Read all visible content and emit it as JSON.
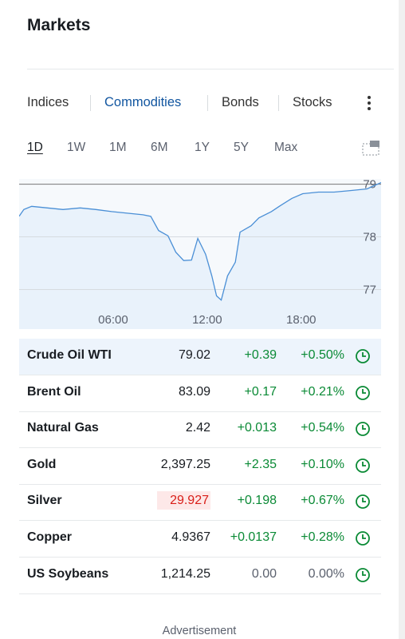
{
  "header": {
    "title": "Markets"
  },
  "tabs": {
    "items": [
      "Indices",
      "Commodities",
      "Bonds",
      "Stocks"
    ],
    "active": 1
  },
  "ranges": {
    "items": [
      "1D",
      "1W",
      "1M",
      "6M",
      "1Y",
      "5Y",
      "Max"
    ],
    "active": 0
  },
  "chart": {
    "type": "line",
    "color": "#4a8fd6",
    "fill": "#e9f2fb",
    "xlim": [
      0,
      23.1
    ],
    "ylim": [
      76.25,
      79.1
    ],
    "yticks": [
      77,
      78,
      79
    ],
    "xticks": [
      {
        "value": 6,
        "label": "06:00"
      },
      {
        "value": 12,
        "label": "12:00"
      },
      {
        "value": 18,
        "label": "18:00"
      }
    ],
    "x": [
      0,
      0.3,
      0.8,
      1.8,
      2.8,
      3.9,
      4.9,
      5.9,
      6.9,
      7.9,
      8.4,
      8.9,
      9.5,
      10.0,
      10.5,
      11.0,
      11.4,
      11.9,
      12.3,
      12.6,
      12.9,
      13.3,
      13.8,
      14.1,
      14.8,
      15.3,
      16.1,
      16.6,
      17.4,
      18.1,
      19.1,
      20.1,
      21.2,
      22.2,
      23.1
    ],
    "values": [
      78.39,
      78.52,
      78.58,
      78.55,
      78.52,
      78.55,
      78.52,
      78.48,
      78.45,
      78.42,
      78.39,
      78.12,
      78.02,
      77.71,
      77.55,
      77.56,
      77.97,
      77.67,
      77.26,
      76.88,
      76.8,
      77.26,
      77.52,
      78.09,
      78.21,
      78.36,
      78.48,
      78.58,
      78.73,
      78.82,
      78.85,
      78.85,
      78.88,
      78.91,
      79.03
    ]
  },
  "table": {
    "rows": [
      [
        "Crude Oil WTI",
        "79.02",
        "+0.39",
        "+0.50%"
      ],
      [
        "Brent Oil",
        "83.09",
        "+0.17",
        "+0.21%"
      ],
      [
        "Natural Gas",
        "2.42",
        "+0.013",
        "+0.54%"
      ],
      [
        "Gold",
        "2,397.25",
        "+2.35",
        "+0.10%"
      ],
      [
        "Silver",
        "29.927",
        "+0.198",
        "+0.67%"
      ],
      [
        "Copper",
        "4.9367",
        "+0.0137",
        "+0.28%"
      ],
      [
        "US Soybeans",
        "1,214.25",
        "0.00",
        "0.00%"
      ]
    ],
    "highlight_row": 0,
    "flash_row": 4
  },
  "footer": {
    "advertisement": "Advertisement"
  }
}
